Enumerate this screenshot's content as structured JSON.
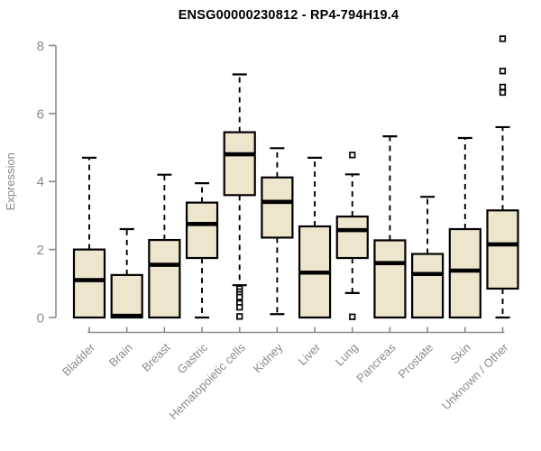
{
  "chart_data": {
    "type": "box",
    "title": "ENSG00000230812 - RP4-794H19.4",
    "xlabel": "",
    "ylabel": "Expression",
    "ylim": [
      0,
      8
    ],
    "yticks": [
      0,
      2,
      4,
      6,
      8
    ],
    "grid": false,
    "legend": "none",
    "box_fill": "#ece6cc",
    "box_stroke": "#000000",
    "axis_color": "#8a8a8a",
    "title_color": "#000000",
    "categories": [
      "Bladder",
      "Brain",
      "Breast",
      "Gastric",
      "Hematopoietic cells",
      "Kidney",
      "Liver",
      "Lung",
      "Pancreas",
      "Prostate",
      "Skin",
      "Unknown / Other"
    ],
    "boxes": [
      {
        "category": "Bladder",
        "whisker_low": null,
        "q1": 0.0,
        "median": 1.1,
        "q3": 2.0,
        "whisker_high": 4.7,
        "outliers": []
      },
      {
        "category": "Brain",
        "whisker_low": null,
        "q1": 0.0,
        "median": 0.05,
        "q3": 1.25,
        "whisker_high": 2.6,
        "outliers": []
      },
      {
        "category": "Breast",
        "whisker_low": null,
        "q1": 0.0,
        "median": 1.55,
        "q3": 2.28,
        "whisker_high": 4.2,
        "outliers": []
      },
      {
        "category": "Gastric",
        "whisker_low": 0.0,
        "q1": 1.75,
        "median": 2.75,
        "q3": 3.38,
        "whisker_high": 3.95,
        "outliers": []
      },
      {
        "category": "Hematopoietic cells",
        "whisker_low": 0.95,
        "q1": 3.6,
        "median": 4.8,
        "q3": 5.45,
        "whisker_high": 7.15,
        "outliers": [
          0.85,
          0.76,
          0.68,
          0.6,
          0.42,
          0.3,
          0.03
        ]
      },
      {
        "category": "Kidney",
        "whisker_low": 0.1,
        "q1": 2.35,
        "median": 3.4,
        "q3": 4.12,
        "whisker_high": 4.98,
        "outliers": []
      },
      {
        "category": "Liver",
        "whisker_low": null,
        "q1": 0.0,
        "median": 1.32,
        "q3": 2.68,
        "whisker_high": 4.7,
        "outliers": []
      },
      {
        "category": "Lung",
        "whisker_low": 0.72,
        "q1": 1.75,
        "median": 2.57,
        "q3": 2.97,
        "whisker_high": 4.21,
        "outliers": [
          4.78,
          0.02
        ]
      },
      {
        "category": "Pancreas",
        "whisker_low": null,
        "q1": 0.0,
        "median": 1.6,
        "q3": 2.27,
        "whisker_high": 5.33,
        "outliers": []
      },
      {
        "category": "Prostate",
        "whisker_low": null,
        "q1": 0.0,
        "median": 1.28,
        "q3": 1.87,
        "whisker_high": 3.55,
        "outliers": []
      },
      {
        "category": "Skin",
        "whisker_low": null,
        "q1": 0.0,
        "median": 1.38,
        "q3": 2.6,
        "whisker_high": 5.28,
        "outliers": []
      },
      {
        "category": "Unknown / Other",
        "whisker_low": 0.0,
        "q1": 0.85,
        "median": 2.15,
        "q3": 3.15,
        "whisker_high": 5.6,
        "outliers": [
          8.2,
          7.25,
          6.78,
          6.62
        ]
      }
    ]
  }
}
